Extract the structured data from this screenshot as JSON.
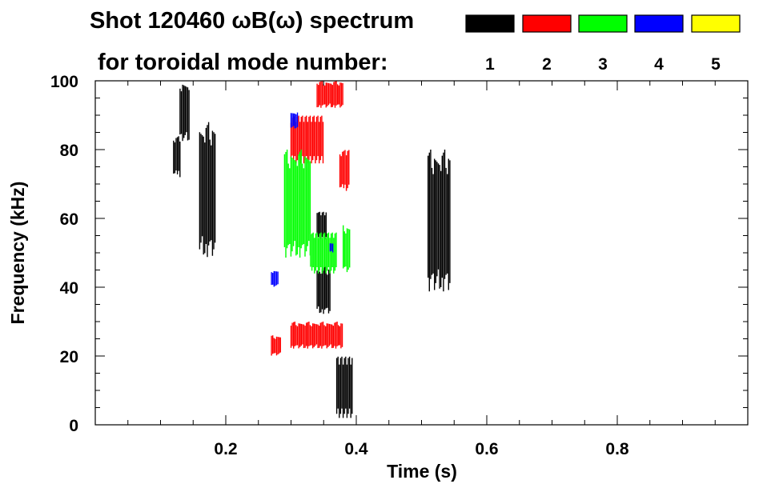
{
  "chart_data": {
    "type": "heatmap",
    "title_line1": "Shot 120460 ωB(ω) spectrum",
    "title_line2": "for toroidal mode number:",
    "xlabel": "Time (s)",
    "ylabel": "Frequency (kHz)",
    "xlim": [
      0.0,
      1.0
    ],
    "ylim": [
      0,
      100
    ],
    "x_ticks": [
      0.2,
      0.4,
      0.6,
      0.8
    ],
    "x_tick_labels": [
      "0.2",
      "0.4",
      "0.6",
      "0.8"
    ],
    "y_ticks": [
      0,
      20,
      40,
      60,
      80,
      100
    ],
    "y_tick_labels": [
      "0",
      "20",
      "40",
      "60",
      "80",
      "100"
    ],
    "legend_position": "top-right",
    "legend": [
      {
        "label": "1",
        "color": "#000000"
      },
      {
        "label": "2",
        "color": "#ff0000"
      },
      {
        "label": "3",
        "color": "#00ff00"
      },
      {
        "label": "4",
        "color": "#0000ff"
      },
      {
        "label": "5",
        "color": "#ffff00"
      }
    ],
    "grid": false,
    "series": [
      {
        "mode": 1,
        "color": "#000000",
        "regions": [
          {
            "t0": 0.12,
            "t1": 0.13,
            "f0": 72,
            "f1": 84
          },
          {
            "t0": 0.13,
            "t1": 0.145,
            "f0": 82,
            "f1": 100
          },
          {
            "t0": 0.16,
            "t1": 0.185,
            "f0": 48,
            "f1": 88
          },
          {
            "t0": 0.34,
            "t1": 0.36,
            "f0": 32,
            "f1": 46
          },
          {
            "t0": 0.37,
            "t1": 0.395,
            "f0": 2,
            "f1": 20
          },
          {
            "t0": 0.51,
            "t1": 0.545,
            "f0": 38,
            "f1": 80
          },
          {
            "t0": 0.34,
            "t1": 0.355,
            "f0": 54,
            "f1": 62
          }
        ]
      },
      {
        "mode": 2,
        "color": "#ff0000",
        "regions": [
          {
            "t0": 0.27,
            "t1": 0.285,
            "f0": 20,
            "f1": 26
          },
          {
            "t0": 0.3,
            "t1": 0.38,
            "f0": 22,
            "f1": 30
          },
          {
            "t0": 0.3,
            "t1": 0.35,
            "f0": 76,
            "f1": 90
          },
          {
            "t0": 0.34,
            "t1": 0.38,
            "f0": 92,
            "f1": 100
          },
          {
            "t0": 0.375,
            "t1": 0.39,
            "f0": 68,
            "f1": 80
          }
        ]
      },
      {
        "mode": 3,
        "color": "#00ff00",
        "regions": [
          {
            "t0": 0.29,
            "t1": 0.33,
            "f0": 48,
            "f1": 80
          },
          {
            "t0": 0.33,
            "t1": 0.37,
            "f0": 44,
            "f1": 56
          },
          {
            "t0": 0.38,
            "t1": 0.39,
            "f0": 44,
            "f1": 58
          }
        ]
      },
      {
        "mode": 4,
        "color": "#0000ff",
        "regions": [
          {
            "t0": 0.27,
            "t1": 0.28,
            "f0": 40,
            "f1": 45
          },
          {
            "t0": 0.3,
            "t1": 0.31,
            "f0": 86,
            "f1": 91
          },
          {
            "t0": 0.36,
            "t1": 0.365,
            "f0": 50,
            "f1": 53
          }
        ]
      },
      {
        "mode": 5,
        "color": "#ffff00",
        "regions": []
      }
    ]
  }
}
